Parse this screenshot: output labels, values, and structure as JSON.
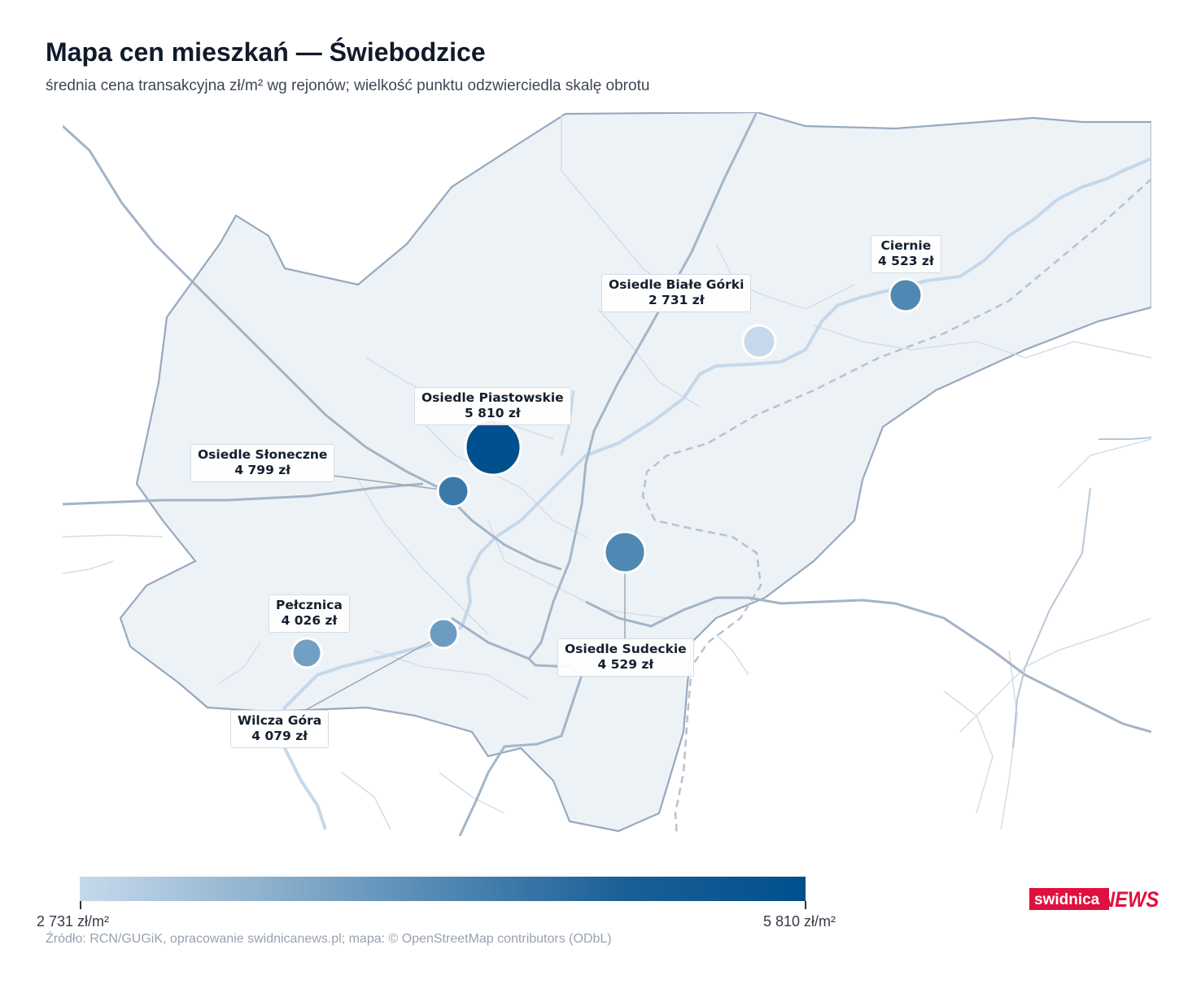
{
  "header": {
    "title": "Mapa cen mieszkań — Świebodzice",
    "subtitle": "średnia cena transakcyjna zł/m² wg rejonów; wielkość punktu odzwierciedla skalę obrotu"
  },
  "districts": [
    {
      "name": "Osiedle Piastowskie",
      "price": "5 810 zł",
      "color": "#00508d"
    },
    {
      "name": "Osiedle Słoneczne",
      "price": "4 799 zł",
      "color": "#3b7aa8"
    },
    {
      "name": "Osiedle Sudeckie",
      "price": "4 529 zł",
      "color": "#4f88b3"
    },
    {
      "name": "Ciernie",
      "price": "4 523 zł",
      "color": "#4f88b3"
    },
    {
      "name": "Wilcza Góra",
      "price": "4 079 zł",
      "color": "#6c9cc2"
    },
    {
      "name": "Pełcznica",
      "price": "4 026 zł",
      "color": "#71a0c4"
    },
    {
      "name": "Osiedle Białe Górki",
      "price": "2 731 zł",
      "color": "#c6d9ec"
    }
  ],
  "legend": {
    "min_label": "2 731 zł/m²",
    "max_label": "5 810 zł/m²",
    "min_color": "#c6d9ec",
    "max_color": "#00508d"
  },
  "footer": {
    "source": "Źródło: RCN/GUGiK, opracowanie swidnicanews.pl; mapa: © OpenStreetMap contributors (ODbL)"
  },
  "logo": {
    "part1": "swidnica",
    "part2": "NEWS",
    "color": "#e0103f"
  }
}
